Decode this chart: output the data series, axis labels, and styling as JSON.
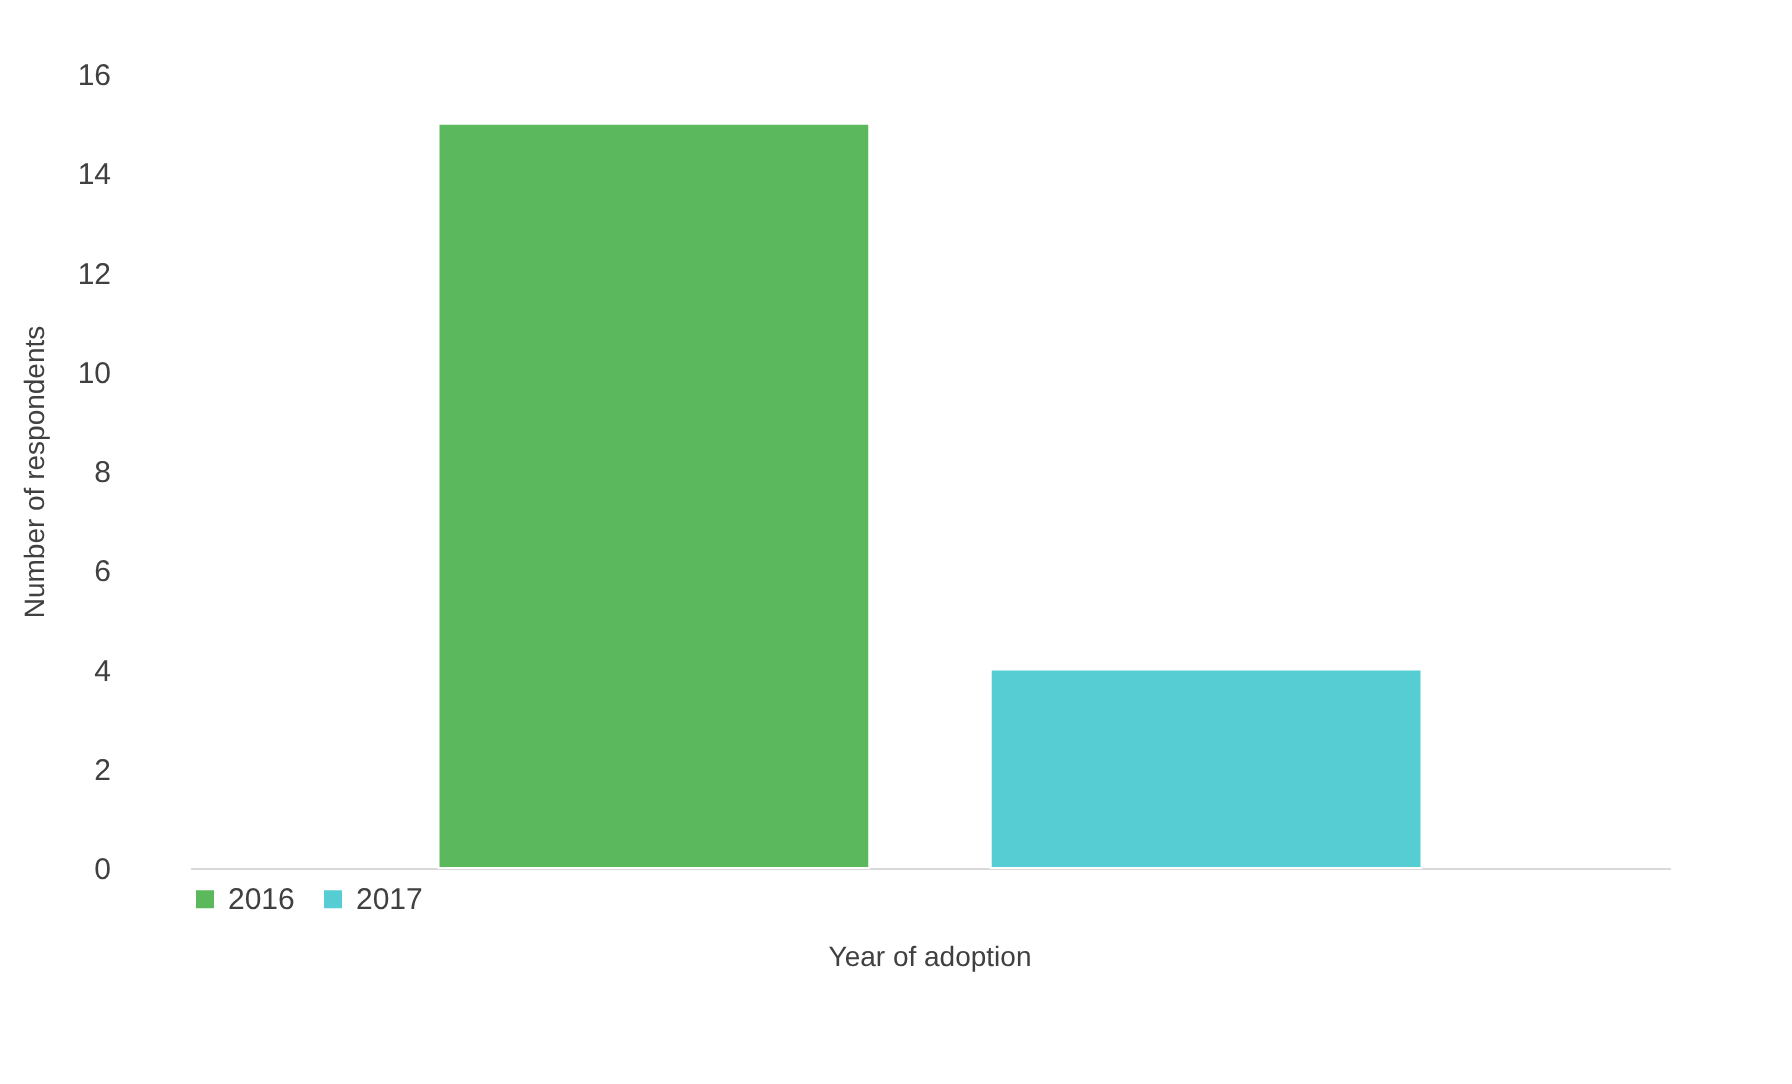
{
  "chart_data": {
    "type": "bar",
    "xlabel": "Year of adoption",
    "ylabel": "Number of respondents",
    "categories": [
      null,
      null
    ],
    "series": [
      {
        "name": "2016",
        "color": "#5cb85c",
        "values": [
          15,
          null
        ]
      },
      {
        "name": "2017",
        "color": "#56cdd3",
        "values": [
          null,
          4
        ]
      }
    ],
    "ylim": [
      0,
      16
    ],
    "yticks": [
      0,
      2,
      4,
      6,
      8,
      10,
      12,
      14,
      16
    ],
    "grid": false,
    "legend": "bottom",
    "tick_labels": "y"
  }
}
